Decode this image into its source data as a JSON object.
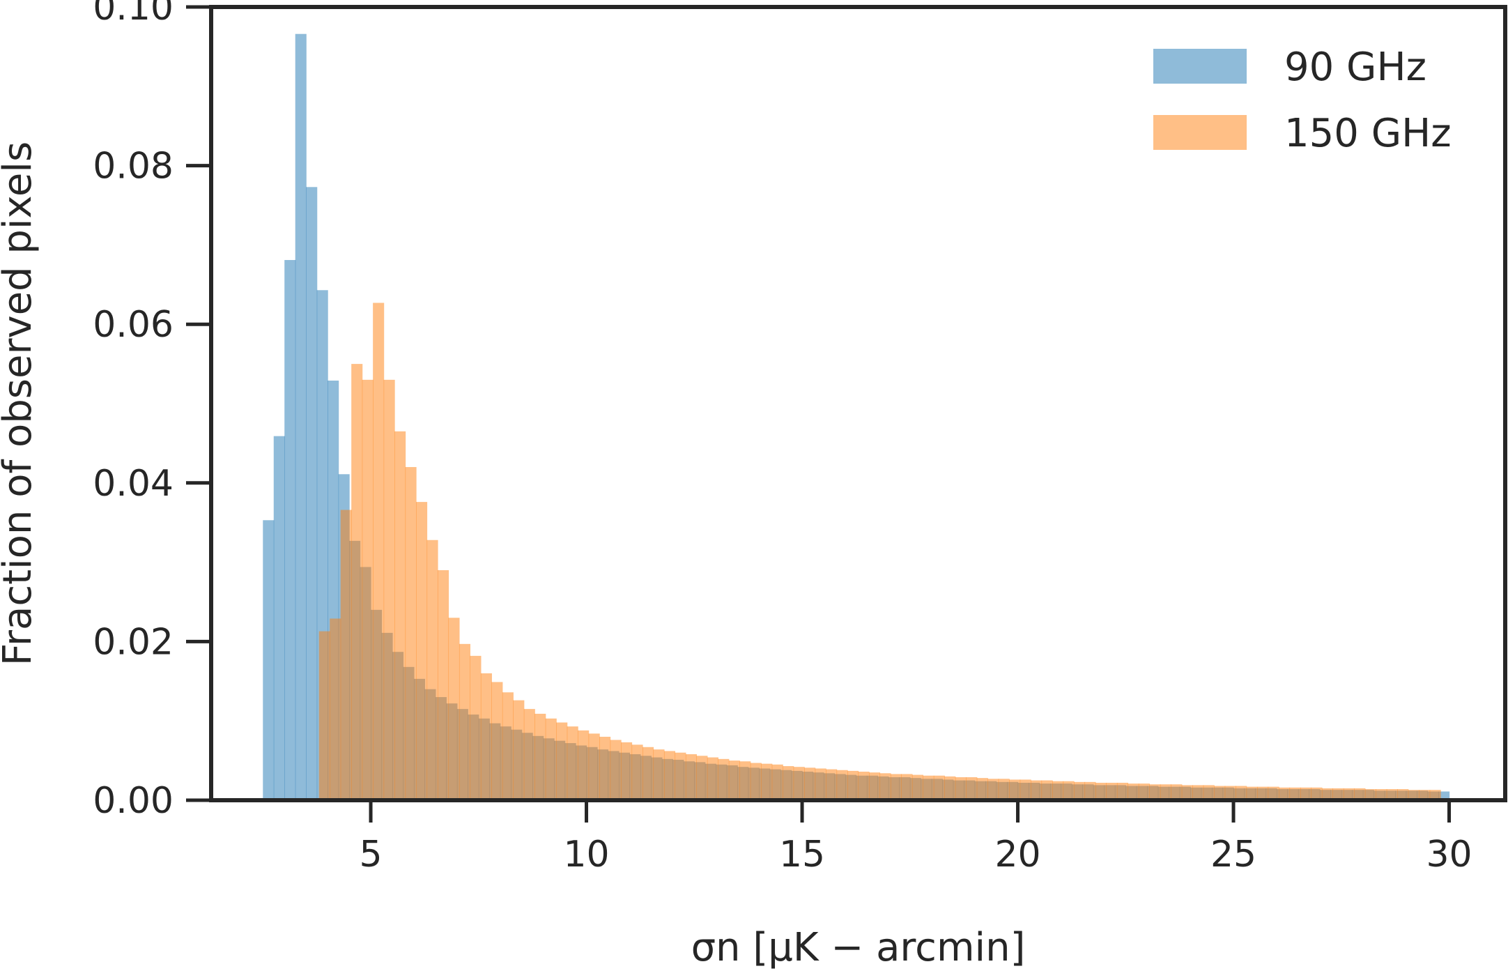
{
  "chart_data": {
    "type": "bar",
    "xlabel": "σn [μK − arcmin]",
    "ylabel": "Fraction of observed pixels",
    "xlim": [
      1.3,
      31.3
    ],
    "ylim": [
      0,
      0.1
    ],
    "x_ticks": [
      5,
      10,
      15,
      20,
      25,
      30
    ],
    "y_ticks": [
      "0.00",
      "0.02",
      "0.04",
      "0.06",
      "0.08",
      "0.10"
    ],
    "grid": false,
    "legend_position": "top-right",
    "bin_width": 0.25,
    "series": [
      {
        "name": "90 GHz",
        "color": "#1f77b4",
        "opacity": 0.5,
        "x_start": 2.5,
        "values": [
          0.0353,
          0.0459,
          0.0681,
          0.0966,
          0.0773,
          0.0643,
          0.0529,
          0.0411,
          0.0327,
          0.0294,
          0.024,
          0.0211,
          0.0187,
          0.0168,
          0.0153,
          0.014,
          0.013,
          0.0122,
          0.0115,
          0.0108,
          0.0103,
          0.0097,
          0.0093,
          0.0089,
          0.0085,
          0.0081,
          0.0078,
          0.0075,
          0.0072,
          0.0069,
          0.0067,
          0.0064,
          0.0062,
          0.006,
          0.0058,
          0.0056,
          0.0054,
          0.0052,
          0.0051,
          0.0049,
          0.0048,
          0.0046,
          0.0045,
          0.0044,
          0.0042,
          0.0041,
          0.004,
          0.0039,
          0.0038,
          0.0037,
          0.0036,
          0.0035,
          0.0034,
          0.0033,
          0.0032,
          0.0031,
          0.0031,
          0.003,
          0.0029,
          0.0029,
          0.0028,
          0.0027,
          0.0027,
          0.0026,
          0.0025,
          0.0025,
          0.0024,
          0.0024,
          0.0023,
          0.0023,
          0.0022,
          0.0022,
          0.0021,
          0.0021,
          0.0021,
          0.002,
          0.002,
          0.0019,
          0.0019,
          0.0019,
          0.0018,
          0.0018,
          0.0018,
          0.0017,
          0.0017,
          0.0017,
          0.0016,
          0.0016,
          0.0016,
          0.0016,
          0.0015,
          0.0015,
          0.0015,
          0.0015,
          0.0014,
          0.0014,
          0.0014,
          0.0014,
          0.0013,
          0.0013,
          0.0013,
          0.0013,
          0.0013,
          0.0012,
          0.0012,
          0.0012,
          0.0012,
          0.0012,
          0.0011,
          0.0011
        ]
      },
      {
        "name": "150 GHz",
        "color": "#ff7f0e",
        "opacity": 0.5,
        "x_start": 3.8,
        "values": [
          0.0213,
          0.0229,
          0.0366,
          0.055,
          0.053,
          0.0627,
          0.053,
          0.0465,
          0.042,
          0.0376,
          0.0328,
          0.029,
          0.023,
          0.0197,
          0.0182,
          0.016,
          0.0149,
          0.0136,
          0.0126,
          0.0115,
          0.0109,
          0.0103,
          0.0098,
          0.0093,
          0.0088,
          0.0084,
          0.008,
          0.0076,
          0.0073,
          0.007,
          0.0067,
          0.0064,
          0.0062,
          0.006,
          0.0058,
          0.0056,
          0.0054,
          0.0052,
          0.005,
          0.0049,
          0.0047,
          0.0046,
          0.0045,
          0.0043,
          0.0042,
          0.0041,
          0.004,
          0.0039,
          0.0038,
          0.0037,
          0.0036,
          0.0035,
          0.0034,
          0.0033,
          0.0033,
          0.0032,
          0.0031,
          0.0031,
          0.003,
          0.0029,
          0.0029,
          0.0028,
          0.0027,
          0.0027,
          0.0026,
          0.0026,
          0.0025,
          0.0025,
          0.0024,
          0.0024,
          0.0023,
          0.0023,
          0.0022,
          0.0022,
          0.0022,
          0.0021,
          0.0021,
          0.002,
          0.002,
          0.002,
          0.0019,
          0.0019,
          0.0019,
          0.0018,
          0.0018,
          0.0018,
          0.0017,
          0.0017,
          0.0017,
          0.0016,
          0.0016,
          0.0016,
          0.0016,
          0.0015,
          0.0015,
          0.0015,
          0.0015,
          0.0014,
          0.0014,
          0.0014,
          0.0014,
          0.0013,
          0.0013,
          0.0013
        ]
      }
    ]
  }
}
